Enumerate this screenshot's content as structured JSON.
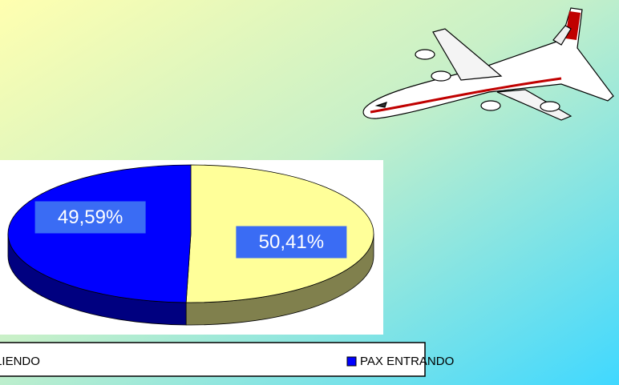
{
  "chart_data": {
    "type": "pie",
    "categories": [
      "PAX SALIENDO",
      "PAX ENTRANDO"
    ],
    "values": [
      50.41,
      49.59
    ],
    "value_labels": [
      "50,41%",
      "49,59%"
    ],
    "colors": [
      "#ffff99",
      "#0000ff"
    ],
    "legend": "bottom"
  }
}
